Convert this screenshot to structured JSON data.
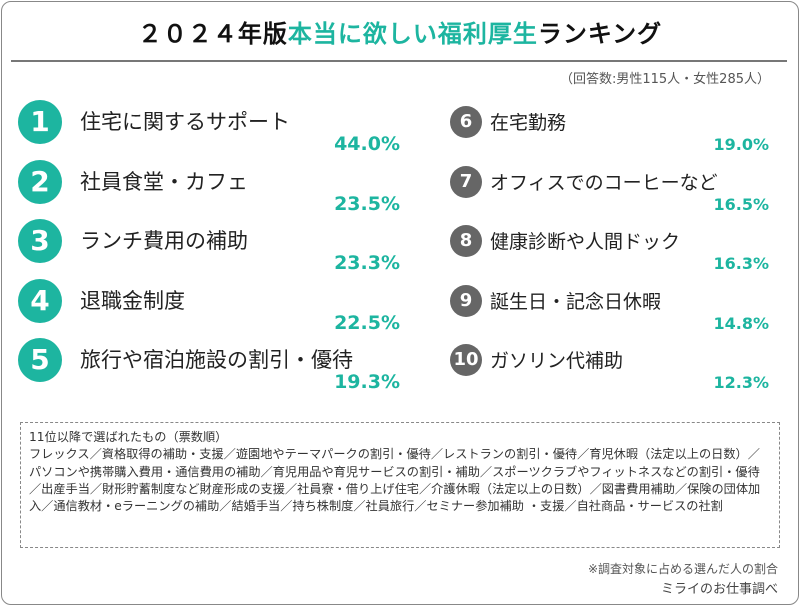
{
  "title": {
    "part1": "２０２４年版",
    "highlight": "本当に欲しい福利厚生",
    "part2": "ランキング"
  },
  "respondents": "（回答数:男性115人・女性285人）",
  "left": [
    {
      "rank": "1",
      "label": "住宅に関するサポート",
      "pct": "44.0%"
    },
    {
      "rank": "2",
      "label": "社員食堂・カフェ",
      "pct": "23.5%"
    },
    {
      "rank": "3",
      "label": "ランチ費用の補助",
      "pct": "23.3%"
    },
    {
      "rank": "4",
      "label": "退職金制度",
      "pct": "22.5%"
    },
    {
      "rank": "5",
      "label": "旅行や宿泊施設の割引・優待",
      "pct": "19.3%"
    }
  ],
  "right": [
    {
      "rank": "6",
      "label": "在宅勤務",
      "pct": "19.0%"
    },
    {
      "rank": "7",
      "label": "オフィスでのコーヒーなど",
      "pct": "16.5%"
    },
    {
      "rank": "8",
      "label": "健康診断や人間ドック",
      "pct": "16.3%"
    },
    {
      "rank": "9",
      "label": "誕生日・記念日休暇",
      "pct": "14.8%"
    },
    {
      "rank": "10",
      "label": "ガソリン代補助",
      "pct": "12.3%"
    }
  ],
  "others": {
    "heading": "11位以降で選ばれたもの（票数順）",
    "text": "フレックス／資格取得の補助・支援／遊園地やテーマパークの割引・優待／レストランの割引・優待／育児休暇（法定以上の日数）／パソコンや携帯購入費用・通信費用の補助／育児用品や育児サービスの割引・補助／スポーツクラブやフィットネスなどの割引・優待／出産手当／財形貯蓄制度など財産形成の支援／社員寮・借り上げ住宅／介護休暇（法定以上の日数）／図書費用補助／保険の団体加入／通信教材・eラーニングの補助／結婚手当／持ち株制度／社員旅行／セミナー参加補助 ・支援／自社商品・サービスの社割"
  },
  "footnote": "※調査対象に占める選んだ人の割合",
  "source": "ミライのお仕事調べ",
  "colors": {
    "accent": "#1db5a0",
    "secondary": "#666666"
  }
}
